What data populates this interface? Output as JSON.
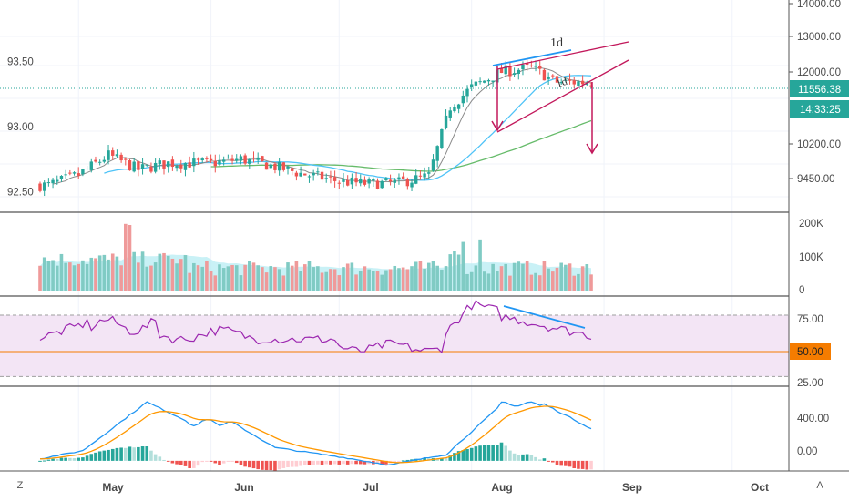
{
  "corner_left": "Z",
  "corner_right": "A",
  "price_axis": {
    "left_ticks": [
      {
        "v": 93.5,
        "label": "93.50"
      },
      {
        "v": 93.0,
        "label": "93.00"
      },
      {
        "v": 92.5,
        "label": "92.50"
      }
    ],
    "right_ticks": [
      {
        "v": 14000,
        "label": "14000.00"
      },
      {
        "v": 13000,
        "label": "13000.00"
      },
      {
        "v": 12000,
        "label": "12000.00"
      },
      {
        "v": 10200,
        "label": "10200.00"
      },
      {
        "v": 9450,
        "label": "9450.00"
      }
    ],
    "last_price_label": "11556.38",
    "countdown_label": "14:33:25",
    "last_price_color": "#26a69a"
  },
  "volume_axis": {
    "ticks": [
      {
        "v": 200000,
        "label": "200K"
      },
      {
        "v": 100000,
        "label": "100K"
      },
      {
        "v": 0,
        "label": "0"
      }
    ]
  },
  "rsi_axis": {
    "ticks": [
      {
        "v": 75,
        "label": "75.00"
      },
      {
        "v": 25,
        "label": "25.00"
      }
    ],
    "current_label": "50.00",
    "current_color": "#f57c00"
  },
  "macd_axis": {
    "ticks": [
      {
        "v": 400,
        "label": "400.00"
      },
      {
        "v": 0,
        "label": "0.00"
      }
    ]
  },
  "time_axis": [
    "May",
    "Jun",
    "Jul",
    "Aug",
    "Sep",
    "Oct"
  ],
  "annotations": {
    "top_label": "1d",
    "wedge_label": "1d"
  },
  "colors": {
    "up": "#26a69a",
    "down": "#ef5350",
    "ma_fast": "#8a8a8a",
    "ma_mid": "#4fc3f7",
    "ma_slow": "#66bb6a",
    "rsi": "#9c27b0",
    "rsi_band": "#f3e5f5",
    "macd": "#2196f3",
    "signal": "#ff9800",
    "wedge": "#c2185b",
    "divergence": "#2196f3"
  },
  "chart_data": {
    "type": "candlestick",
    "series": [
      {
        "name": "price",
        "axis": "left",
        "description_points": [
          {
            "date": "2020-04-24",
            "value": 92.55
          },
          {
            "date": "2020-05-01",
            "value": 92.63
          },
          {
            "date": "2020-05-08",
            "value": 92.78
          },
          {
            "date": "2020-05-15",
            "value": 92.67
          },
          {
            "date": "2020-05-22",
            "value": 92.72
          },
          {
            "date": "2020-06-01",
            "value": 92.72
          },
          {
            "date": "2020-06-08",
            "value": 92.75
          },
          {
            "date": "2020-06-15",
            "value": 92.7
          },
          {
            "date": "2020-06-22",
            "value": 92.64
          },
          {
            "date": "2020-07-01",
            "value": 92.58
          },
          {
            "date": "2020-07-08",
            "value": 92.56
          },
          {
            "date": "2020-07-15",
            "value": 92.57
          },
          {
            "date": "2020-07-22",
            "value": 92.62
          },
          {
            "date": "2020-07-27",
            "value": 93.15
          },
          {
            "date": "2020-08-01",
            "value": 93.3
          },
          {
            "date": "2020-08-08",
            "value": 93.42
          },
          {
            "date": "2020-08-15",
            "value": 93.45
          },
          {
            "date": "2020-08-21",
            "value": 93.34
          }
        ]
      }
    ],
    "volume_ylim": [
      0,
      210000
    ],
    "rsi_ylim": [
      15,
      90
    ],
    "macd_ylim": [
      -100,
      700
    ],
    "ylim_left": [
      92.35,
      93.97
    ]
  }
}
